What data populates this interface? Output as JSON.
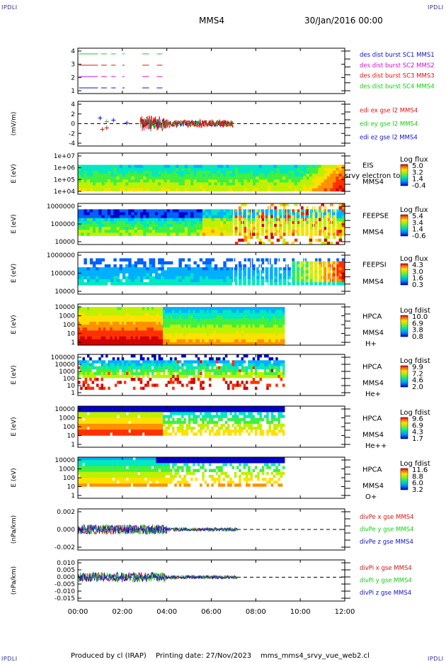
{
  "header": {
    "corner_label": "IPDLI",
    "mission": "MMS4",
    "date": "30/Jan/2016 00:00"
  },
  "footer": {
    "produced": "Produced by cl (IRAP)",
    "printing": "Printing date: 27/Nov/2023",
    "script": "mms_mms4_srvy_vue_web2.cl"
  },
  "colors": {
    "red": "#e01010",
    "green": "#10d010",
    "blue": "#1010d0",
    "magenta": "#d010d0"
  },
  "chart_data": {
    "type": "multi-panel",
    "time_axis": {
      "ticks": [
        "00:00",
        "02:00",
        "04:00",
        "06:00",
        "08:00",
        "10:00",
        "12:00"
      ],
      "range_hours": [
        0,
        12
      ]
    },
    "panels": [
      {
        "type": "line",
        "name": "des-dist-burst",
        "yticks": [
          "4",
          "3",
          "2",
          "1"
        ],
        "legend": [
          {
            "text": "des dist burst SC1 MMS1",
            "color": "#1010d0"
          },
          {
            "text": "des dist burst SC2 MMS2",
            "color": "#d010d0"
          },
          {
            "text": "des dist burst SC3 MMS3",
            "color": "#e01010"
          },
          {
            "text": "des dist burst SC4 MMS4",
            "color": "#10d010"
          }
        ]
      },
      {
        "type": "line",
        "name": "edi-e-field",
        "ylabel": "(mV/m)",
        "yticks": [
          "4",
          "2",
          "0",
          "-2",
          "-4"
        ],
        "legend": [
          {
            "text": "edi ex gse l2 MMS4",
            "color": "#e01010"
          },
          {
            "text": "edi ey gse l2 MMS4",
            "color": "#10d010"
          },
          {
            "text": "edi ez gse l2 MMS4",
            "color": "#1010d0"
          }
        ]
      },
      {
        "type": "heatmap",
        "name": "eis",
        "ylabel": "E (eV)",
        "yticks": [
          "1e+07",
          "1e+06",
          "1e+05",
          "1e+04"
        ],
        "right_labels": [
          "EIS",
          "MMS4"
        ],
        "overlap_label": "srvy electron to",
        "cbar_title": "Log flux",
        "cbar_ticks": [
          "5.0",
          "3.2",
          "1.4",
          "-0.4"
        ]
      },
      {
        "type": "heatmap",
        "name": "feeps-e",
        "ylabel": "E (eV)",
        "yticks": [
          "1000000",
          "100000",
          "10000"
        ],
        "right_labels": [
          "FEEPSE",
          "MMS4"
        ],
        "cbar_title": "Log flux",
        "cbar_ticks": [
          "5.4",
          "3.4",
          "1.4",
          "-0.6"
        ]
      },
      {
        "type": "heatmap",
        "name": "feeps-i",
        "ylabel": "E (eV)",
        "yticks": [
          "1000000",
          "100000",
          "10000"
        ],
        "right_labels": [
          "FEEPSI",
          "MMS4"
        ],
        "cbar_title": "Log flux",
        "cbar_ticks": [
          "4.3",
          "3.0",
          "1.6",
          "0.3"
        ]
      },
      {
        "type": "heatmap",
        "name": "hpca-h",
        "ylabel": "E (eV)",
        "yticks": [
          "10000",
          "1000",
          "100",
          "10",
          "1"
        ],
        "right_labels": [
          "HPCA",
          "MMS4",
          "H+"
        ],
        "cbar_title": "Log fdist",
        "cbar_ticks": [
          "10.0",
          "6.9",
          "3.8",
          "0.8"
        ]
      },
      {
        "type": "heatmap",
        "name": "hpca-he",
        "ylabel": "E (eV)",
        "yticks": [
          "100000",
          "10000",
          "1000",
          "100",
          "10",
          "1"
        ],
        "right_labels": [
          "HPCA",
          "MMS4",
          "He+"
        ],
        "cbar_title": "Log fdist",
        "cbar_ticks": [
          "9.9",
          "7.2",
          "4.6",
          "2.0"
        ]
      },
      {
        "type": "heatmap",
        "name": "hpca-he2",
        "ylabel": "E (eV)",
        "yticks": [
          "10000",
          "1000",
          "100",
          "10",
          "1"
        ],
        "right_labels": [
          "HPCA",
          "MMS4",
          "He++"
        ],
        "cbar_title": "Log fdist",
        "cbar_ticks": [
          "9.6",
          "6.9",
          "4.3",
          "1.7"
        ]
      },
      {
        "type": "heatmap",
        "name": "hpca-o",
        "ylabel": "E (eV)",
        "yticks": [
          "10000",
          "1000",
          "100",
          "10",
          "1"
        ],
        "right_labels": [
          "HPCA",
          "MMS4",
          "O+"
        ],
        "cbar_title": "Log fdist",
        "cbar_ticks": [
          "11.6",
          "8.8",
          "6.0",
          "3.2"
        ]
      },
      {
        "type": "line",
        "name": "div-pe",
        "ylabel": "(nPa/km)",
        "yticks": [
          "0.002",
          "0.000",
          "-0.002"
        ],
        "legend": [
          {
            "text": "divPe x gse MMS4",
            "color": "#e01010"
          },
          {
            "text": "divPe y gse MMS4",
            "color": "#10d010"
          },
          {
            "text": "divPe z gse MMS4",
            "color": "#1010d0"
          }
        ]
      },
      {
        "type": "line",
        "name": "div-pi",
        "ylabel": "(nPa/km)",
        "yticks": [
          "0.010",
          "0.005",
          "0.000",
          "-0.005",
          "-0.010",
          "-0.015"
        ],
        "legend": [
          {
            "text": "divPi x gse MMS4",
            "color": "#e01010"
          },
          {
            "text": "divPi y gse MMS4",
            "color": "#10d010"
          },
          {
            "text": "divPi z gse MMS4",
            "color": "#1010d0"
          }
        ]
      }
    ]
  }
}
